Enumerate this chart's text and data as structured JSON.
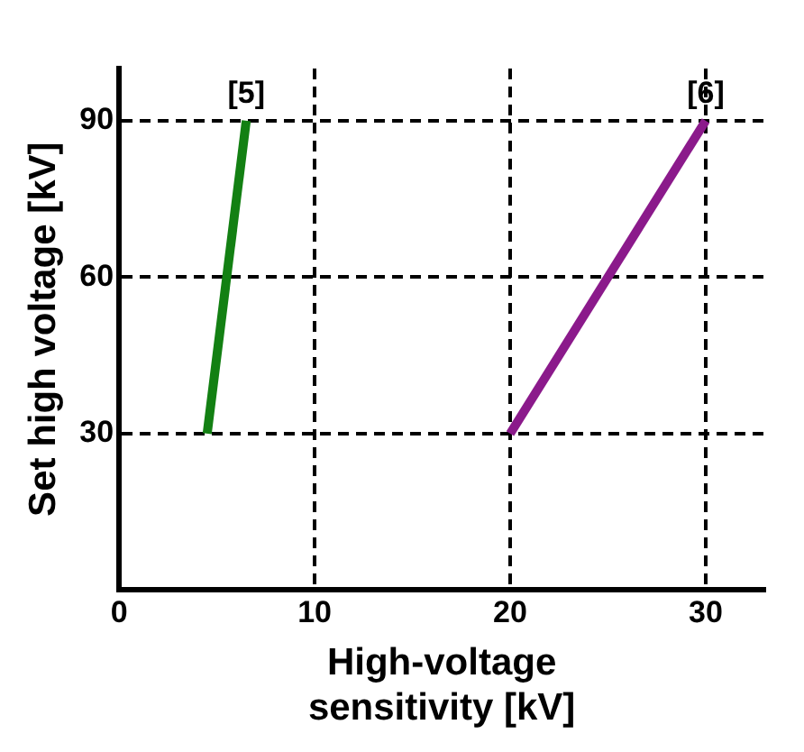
{
  "chart_data": {
    "type": "line",
    "xlabel": "High-voltage\nsensitivity [kV]",
    "ylabel": "Set high voltage [kV]",
    "series": [
      {
        "color": "#138013",
        "x": [
          4.5,
          6.5
        ],
        "values": [
          30,
          90
        ]
      },
      {
        "color": "#8b1a8b",
        "x": [
          20,
          30
        ],
        "values": [
          30,
          90
        ]
      }
    ],
    "xlim": [
      0,
      33
    ],
    "ylim": [
      0,
      100
    ],
    "xticks": [
      0,
      10,
      20,
      30
    ],
    "yticks": [
      30,
      60,
      90
    ],
    "grid": true,
    "legend": false,
    "marker": "none",
    "line_style": "solid",
    "annotations": [
      {
        "text": "[5]",
        "x": 6.5,
        "y": 90
      },
      {
        "text": "[6]",
        "x": 30,
        "y": 90
      }
    ]
  }
}
